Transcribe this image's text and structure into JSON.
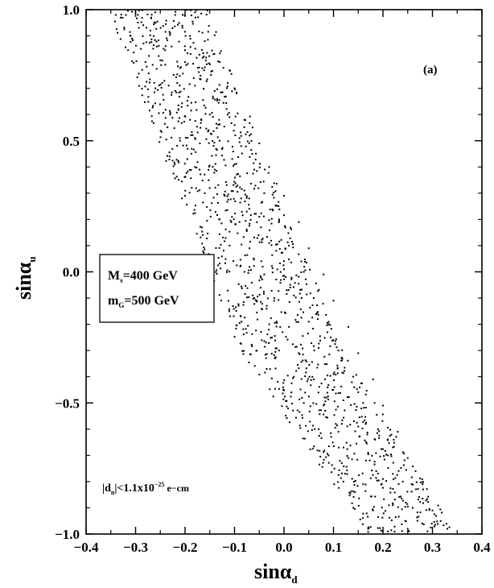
{
  "chart_data": {
    "type": "scatter",
    "panel_label": "(a)",
    "xlabel": {
      "base": "sin",
      "greek": "α",
      "sub": "d"
    },
    "ylabel": {
      "base": "sin",
      "greek": "α",
      "sub": "u"
    },
    "xlim": [
      -0.4,
      0.4
    ],
    "ylim": [
      -1.0,
      1.0
    ],
    "xticks": [
      "−0.4",
      "−0.3",
      "−0.2",
      "−0.1",
      "0.0",
      "0.1",
      "0.2",
      "0.3",
      "0.4"
    ],
    "xtick_values": [
      -0.4,
      -0.3,
      -0.2,
      -0.1,
      0.0,
      0.1,
      0.2,
      0.3,
      0.4
    ],
    "yticks": [
      "1.0",
      "0.5",
      "0.0",
      "−0.5",
      "−1.0"
    ],
    "ytick_values": [
      1.0,
      0.5,
      0.0,
      -0.5,
      -1.0
    ],
    "grid": false,
    "legend_box": {
      "line1": {
        "main": "M",
        "sub": "s",
        "rest": "=400 GeV"
      },
      "line2": {
        "main": "m",
        "sub": "G",
        "rest": "=500 GeV"
      }
    },
    "constraint": {
      "pre": "|d",
      "sub": "n",
      "mid": "|<1.1x10",
      "sup": "−25",
      "post": " e−cm"
    },
    "band": {
      "description_values": "allowed points lie in a diagonal band",
      "left_edge": [
        [
          -0.355,
          1.0
        ],
        [
          -0.09,
          -0.3
        ],
        [
          0.17,
          -1.0
        ]
      ],
      "right_edge": [
        [
          -0.155,
          1.0
        ],
        [
          0.12,
          -0.3
        ],
        [
          0.35,
          -1.0
        ]
      ]
    },
    "points": [
      [
        -0.34,
        0.98
      ],
      [
        -0.3,
        0.99
      ],
      [
        -0.26,
        0.99
      ],
      [
        -0.22,
        0.98
      ],
      [
        -0.18,
        0.99
      ],
      [
        -0.31,
        0.9
      ],
      [
        -0.27,
        0.92
      ],
      [
        -0.23,
        0.91
      ],
      [
        -0.19,
        0.9
      ],
      [
        -0.16,
        0.88
      ],
      [
        -0.28,
        0.8
      ],
      [
        -0.24,
        0.79
      ],
      [
        -0.2,
        0.8
      ],
      [
        -0.16,
        0.78
      ],
      [
        -0.13,
        0.8
      ],
      [
        -0.26,
        0.7
      ],
      [
        -0.22,
        0.69
      ],
      [
        -0.18,
        0.71
      ],
      [
        -0.14,
        0.69
      ],
      [
        -0.1,
        0.7
      ],
      [
        -0.23,
        0.6
      ],
      [
        -0.19,
        0.58
      ],
      [
        -0.15,
        0.6
      ],
      [
        -0.11,
        0.59
      ],
      [
        -0.08,
        0.58
      ],
      [
        -0.21,
        0.5
      ],
      [
        -0.17,
        0.49
      ],
      [
        -0.13,
        0.5
      ],
      [
        -0.09,
        0.51
      ],
      [
        -0.05,
        0.49
      ],
      [
        -0.18,
        0.4
      ],
      [
        -0.14,
        0.39
      ],
      [
        -0.1,
        0.41
      ],
      [
        -0.06,
        0.39
      ],
      [
        -0.03,
        0.4
      ],
      [
        -0.16,
        0.3
      ],
      [
        -0.12,
        0.29
      ],
      [
        -0.08,
        0.31
      ],
      [
        -0.04,
        0.3
      ],
      [
        0.0,
        0.29
      ],
      [
        -0.13,
        0.2
      ],
      [
        -0.09,
        0.19
      ],
      [
        -0.05,
        0.21
      ],
      [
        -0.01,
        0.2
      ],
      [
        0.03,
        0.19
      ],
      [
        -0.11,
        0.1
      ],
      [
        -0.07,
        0.09
      ],
      [
        -0.03,
        0.11
      ],
      [
        0.01,
        0.1
      ],
      [
        0.05,
        0.09
      ],
      [
        -0.08,
        0.0
      ],
      [
        -0.04,
        -0.01
      ],
      [
        0.0,
        0.01
      ],
      [
        0.04,
        0.0
      ],
      [
        0.08,
        -0.01
      ],
      [
        -0.06,
        -0.1
      ],
      [
        -0.02,
        -0.11
      ],
      [
        0.02,
        -0.09
      ],
      [
        0.06,
        -0.1
      ],
      [
        0.1,
        -0.11
      ],
      [
        -0.03,
        -0.2
      ],
      [
        0.01,
        -0.21
      ],
      [
        0.05,
        -0.19
      ],
      [
        0.09,
        -0.2
      ],
      [
        0.13,
        -0.21
      ],
      [
        -0.01,
        -0.3
      ],
      [
        0.03,
        -0.31
      ],
      [
        0.07,
        -0.29
      ],
      [
        0.11,
        -0.3
      ],
      [
        0.15,
        -0.31
      ],
      [
        0.02,
        -0.4
      ],
      [
        0.06,
        -0.41
      ],
      [
        0.1,
        -0.39
      ],
      [
        0.14,
        -0.4
      ],
      [
        0.18,
        -0.41
      ],
      [
        0.04,
        -0.5
      ],
      [
        0.08,
        -0.51
      ],
      [
        0.12,
        -0.49
      ],
      [
        0.16,
        -0.5
      ],
      [
        0.2,
        -0.51
      ],
      [
        0.07,
        -0.6
      ],
      [
        0.11,
        -0.61
      ],
      [
        0.15,
        -0.59
      ],
      [
        0.19,
        -0.6
      ],
      [
        0.23,
        -0.61
      ],
      [
        0.09,
        -0.7
      ],
      [
        0.13,
        -0.71
      ],
      [
        0.17,
        -0.69
      ],
      [
        0.21,
        -0.7
      ],
      [
        0.25,
        -0.71
      ],
      [
        0.12,
        -0.8
      ],
      [
        0.16,
        -0.81
      ],
      [
        0.2,
        -0.79
      ],
      [
        0.24,
        -0.8
      ],
      [
        0.28,
        -0.81
      ],
      [
        0.14,
        -0.9
      ],
      [
        0.18,
        -0.91
      ],
      [
        0.22,
        -0.89
      ],
      [
        0.26,
        -0.9
      ],
      [
        0.3,
        -0.91
      ],
      [
        0.17,
        -0.98
      ],
      [
        0.21,
        -0.99
      ],
      [
        0.25,
        -0.98
      ],
      [
        0.29,
        -0.99
      ],
      [
        0.33,
        -0.98
      ]
    ]
  }
}
